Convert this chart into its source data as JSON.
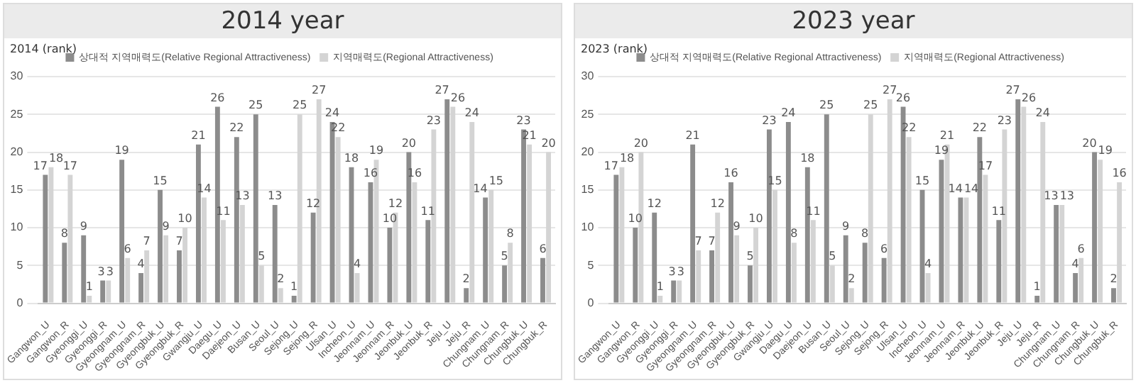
{
  "chart_data": [
    {
      "type": "bar",
      "title": "2014 year",
      "ylabel": "2014 (rank)",
      "categories": [
        "Gangwon_U",
        "Gangwon_R",
        "Gyeonggi_U",
        "Gyeonggi_R",
        "Gyeongnam_U",
        "Gyeongnam_R",
        "Gyeongbuk_U",
        "Gyeongbuk_R",
        "Gwangju_U",
        "Daegu_U",
        "Daejeon_U",
        "Busan_U",
        "Seoul_U",
        "Sejong_U",
        "Sejong_R",
        "Ulsan_U",
        "Incheon_U",
        "Jeonnam_U",
        "Jeonnam_R",
        "Jeonbuk_U",
        "Jeonbuk_R",
        "Jeju_U",
        "Jeju_R",
        "Chungnam_U",
        "Chungnam_R",
        "Chungbuk_U",
        "Chungbuk_R"
      ],
      "series": [
        {
          "name": "상대적 지역매력도(Relative Regional Attractiveness)",
          "color": "#8c8c8c",
          "values": [
            17,
            8,
            9,
            3,
            19,
            4,
            15,
            7,
            21,
            26,
            22,
            25,
            13,
            1,
            12,
            24,
            18,
            16,
            10,
            20,
            11,
            27,
            2,
            14,
            5,
            23,
            6
          ]
        },
        {
          "name": "지역매력도(Regional Attractiveness)",
          "color": "#d4d4d4",
          "values": [
            18,
            17,
            1,
            3,
            6,
            7,
            9,
            10,
            14,
            11,
            13,
            5,
            2,
            25,
            27,
            22,
            4,
            19,
            12,
            16,
            23,
            26,
            24,
            15,
            8,
            21,
            20
          ]
        }
      ],
      "ylim": [
        0,
        30
      ],
      "yticks": [
        0,
        5,
        10,
        15,
        20,
        25,
        30
      ],
      "grid": "y",
      "legend": "top",
      "data_labels": true
    },
    {
      "type": "bar",
      "title": "2023 year",
      "ylabel": "2023 (rank)",
      "categories": [
        "Gangwon_U",
        "Gangwon_R",
        "Gyeonggi_U",
        "Gyeonggi_R",
        "Gyeongnam_U",
        "Gyeongnam_R",
        "Gyeongbuk_U",
        "Gyeongbuk_R",
        "Gwangju_U",
        "Daegu_U",
        "Daejeon_U",
        "Busan_U",
        "Seoul_U",
        "Sejong_U",
        "Sejong_R",
        "Ulsan_U",
        "Incheon_U",
        "Jeonnam_U",
        "Jeonnam_R",
        "Jeonbuk_U",
        "Jeonbuk_R",
        "Jeju_U",
        "Jeju_R",
        "Chungnam_U",
        "Chungnam_R",
        "Chungbuk_U",
        "Chungbuk_R"
      ],
      "series": [
        {
          "name": "상대적 지역매력도(Relative Regional Attractiveness)",
          "color": "#8c8c8c",
          "values": [
            17,
            10,
            12,
            3,
            21,
            7,
            16,
            5,
            23,
            24,
            18,
            25,
            9,
            8,
            6,
            26,
            15,
            19,
            14,
            22,
            11,
            27,
            1,
            13,
            4,
            20,
            2
          ]
        },
        {
          "name": "지역매력도(Regional Attractiveness)",
          "color": "#d4d4d4",
          "values": [
            18,
            20,
            1,
            3,
            7,
            12,
            9,
            10,
            15,
            8,
            11,
            5,
            2,
            25,
            27,
            22,
            4,
            21,
            14,
            17,
            23,
            26,
            24,
            13,
            6,
            19,
            16
          ]
        }
      ],
      "ylim": [
        0,
        30
      ],
      "yticks": [
        0,
        5,
        10,
        15,
        20,
        25,
        30
      ],
      "grid": "y",
      "legend": "top",
      "data_labels": true
    }
  ]
}
